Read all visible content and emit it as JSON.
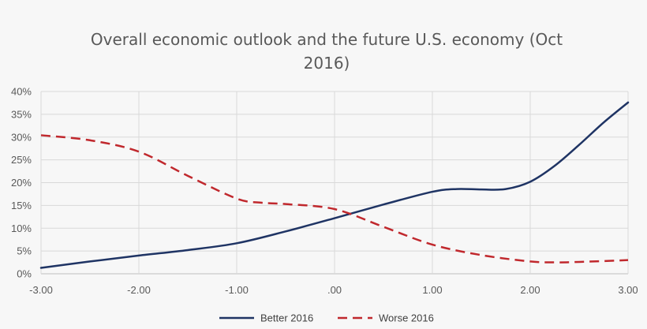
{
  "chart_data": {
    "type": "line",
    "title": "Overall economic outlook and the future U.S. economy (Oct 2016)",
    "title_lines": [
      "Overall economic outlook and the future U.S. economy (Oct",
      "2016)"
    ],
    "xlabel": "",
    "ylabel": "",
    "xlim": [
      -3.0,
      3.0
    ],
    "ylim": [
      0,
      0.4
    ],
    "x_ticks": [
      -3,
      -2,
      -1,
      0,
      1,
      2,
      3
    ],
    "x_tick_labels": [
      "-3.00",
      "-2.00",
      "-1.00",
      ".00",
      "1.00",
      "2.00",
      "3.00"
    ],
    "y_ticks": [
      0,
      0.05,
      0.1,
      0.15,
      0.2,
      0.25,
      0.3,
      0.35,
      0.4
    ],
    "y_tick_labels": [
      "0%",
      "5%",
      "10%",
      "15%",
      "20%",
      "25%",
      "30%",
      "35%",
      "40%"
    ],
    "grid": true,
    "legend_position": "bottom",
    "series": [
      {
        "name": "Better 2016",
        "color": "#1f3464",
        "style": "solid",
        "x": [
          -3.0,
          -2.5,
          -2.0,
          -1.5,
          -1.0,
          -0.5,
          0.0,
          0.5,
          1.0,
          1.25,
          1.5,
          1.75,
          2.0,
          2.25,
          2.5,
          2.75,
          3.0
        ],
        "y": [
          0.013,
          0.027,
          0.04,
          0.052,
          0.067,
          0.093,
          0.122,
          0.152,
          0.18,
          0.186,
          0.185,
          0.186,
          0.202,
          0.237,
          0.283,
          0.332,
          0.376
        ]
      },
      {
        "name": "Worse 2016",
        "color": "#c0282d",
        "style": "dashed",
        "x": [
          -3.0,
          -2.5,
          -2.0,
          -1.5,
          -1.0,
          -0.75,
          -0.5,
          0.0,
          0.5,
          1.0,
          1.5,
          2.0,
          2.25,
          2.5,
          3.0
        ],
        "y": [
          0.304,
          0.293,
          0.268,
          0.215,
          0.165,
          0.156,
          0.153,
          0.142,
          0.103,
          0.064,
          0.041,
          0.027,
          0.025,
          0.026,
          0.03
        ]
      }
    ]
  }
}
